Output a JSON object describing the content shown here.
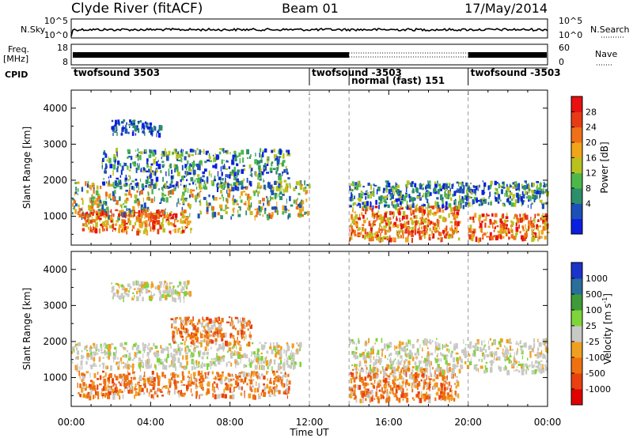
{
  "header": {
    "station": "Clyde River (fitACF)",
    "beam": "Beam 01",
    "date": "17/May/2014"
  },
  "top_panels": {
    "nsky": {
      "label": "N.Sky",
      "tick_high": "10^5",
      "tick_low": "10^0",
      "right_label": "N.Search",
      "right_tick_high": "10^5",
      "right_tick_low": "10^0"
    },
    "freq": {
      "label_line1": "Freq.",
      "label_line2": "[MHz]",
      "tick_high": "18",
      "tick_low": "8",
      "right_label": "Nave",
      "right_tick_high": "60",
      "right_tick_low": "0"
    },
    "cpid": {
      "label": "CPID",
      "segments": [
        {
          "label": "twofsound 3503",
          "start_hour": 0
        },
        {
          "label": "twofsound -3503",
          "start_hour": 12
        },
        {
          "label": "normal (fast) 151",
          "start_hour": 14
        },
        {
          "label": "twofsound -3503",
          "start_hour": 20
        }
      ]
    }
  },
  "chart_data": [
    {
      "type": "heatmap",
      "panel": "power",
      "ylabel": "Slant Range [km]",
      "xlabel": "",
      "xlim_hours": [
        0,
        24
      ],
      "ylim_km": [
        200,
        4500
      ],
      "yticks": [
        "1000",
        "2000",
        "3000",
        "4000"
      ],
      "colorbar": {
        "label": "Power [dB]",
        "ticks": [
          "4",
          "8",
          "12",
          "16",
          "20",
          "24",
          "28"
        ],
        "colors": [
          "#0a1fe0",
          "#1d4fb8",
          "#2d8f6a",
          "#4db84a",
          "#b8c21e",
          "#f0a51a",
          "#f07018",
          "#e83a14",
          "#e81010"
        ]
      },
      "scatter_regions": [
        {
          "hours": [
            0.0,
            12.0
          ],
          "km": [
            1000,
            2000
          ],
          "level": "mixed"
        },
        {
          "hours": [
            0.5,
            6.0
          ],
          "km": [
            600,
            1200
          ],
          "level": "high"
        },
        {
          "hours": [
            1.5,
            11.0
          ],
          "km": [
            1800,
            2900
          ],
          "level": "medium"
        },
        {
          "hours": [
            2.0,
            4.5
          ],
          "km": [
            3300,
            3700
          ],
          "level": "low"
        },
        {
          "hours": [
            14.0,
            19.5
          ],
          "km": [
            400,
            1300
          ],
          "level": "high"
        },
        {
          "hours": [
            14.0,
            24.0
          ],
          "km": [
            1300,
            2000
          ],
          "level": "medium"
        },
        {
          "hours": [
            20.0,
            24.0
          ],
          "km": [
            400,
            1100
          ],
          "level": "high"
        }
      ]
    },
    {
      "type": "heatmap",
      "panel": "velocity",
      "ylabel": "Slant Range [km]",
      "xlabel": "Time UT",
      "xlim_hours": [
        0,
        24
      ],
      "ylim_km": [
        200,
        4500
      ],
      "xticks": [
        "00:00",
        "04:00",
        "08:00",
        "12:00",
        "16:00",
        "20:00",
        "00:00"
      ],
      "yticks": [
        "1000",
        "2000",
        "3000",
        "4000"
      ],
      "colorbar": {
        "label": "Velocity [m s-1]",
        "ticks": [
          "1000",
          "500",
          "100",
          "25",
          "-25",
          "-100",
          "-500",
          "-1000"
        ],
        "colors": [
          "#1a33c8",
          "#2a6e9a",
          "#3f9a3a",
          "#7ed43a",
          "#c8c8c4",
          "#f0a020",
          "#f07010",
          "#e84010",
          "#e00000"
        ]
      },
      "scatter_regions": [
        {
          "hours": [
            0.0,
            11.5
          ],
          "km": [
            1300,
            2000
          ],
          "level": "ground-scatter"
        },
        {
          "hours": [
            0.3,
            11.0
          ],
          "km": [
            500,
            1200
          ],
          "level": "negative"
        },
        {
          "hours": [
            5.0,
            9.0
          ],
          "km": [
            2000,
            2700
          ],
          "level": "negative"
        },
        {
          "hours": [
            2.0,
            6.0
          ],
          "km": [
            3200,
            3700
          ],
          "level": "ground-scatter"
        },
        {
          "hours": [
            14.0,
            19.5
          ],
          "km": [
            400,
            1300
          ],
          "level": "negative"
        },
        {
          "hours": [
            14.0,
            24.0
          ],
          "km": [
            1200,
            2100
          ],
          "level": "ground-scatter"
        }
      ]
    }
  ],
  "colorbar_exponent": "-1"
}
